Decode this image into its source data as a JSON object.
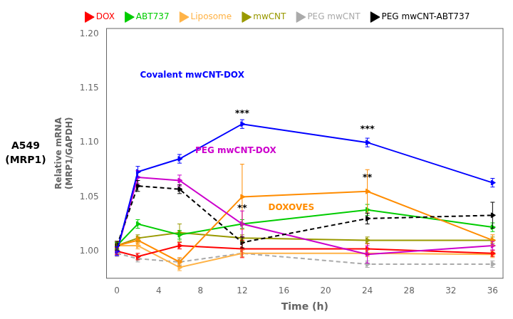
{
  "chart_data": {
    "type": "line",
    "x": [
      0,
      2,
      6,
      12,
      24,
      36
    ],
    "series": [
      {
        "name": "PEG mwCNT",
        "color": "#AAAAAA",
        "line_style": "dashed",
        "marker": "triangle-right",
        "values": [
          0.998,
          0.993,
          0.99,
          0.998,
          0.988,
          0.988
        ],
        "errors": [
          0.003,
          0.003,
          0.003,
          0.003,
          0.003,
          0.003
        ]
      },
      {
        "name": "Liposome",
        "color": "#FFB347",
        "line_style": "solid",
        "marker": "triangle-right",
        "values": [
          1.005,
          1.005,
          0.985,
          0.998,
          0.998,
          0.997
        ],
        "errors": [
          0.003,
          0.003,
          0.003,
          0.003,
          0.003,
          0.003
        ]
      },
      {
        "name": "DOX",
        "color": "#FF0000",
        "line_style": "solid",
        "marker": "triangle-right",
        "values": [
          1.0,
          0.995,
          1.005,
          1.002,
          1.002,
          0.998
        ],
        "errors": [
          0.003,
          0.003,
          0.003,
          0.008,
          0.005,
          0.003
        ]
      },
      {
        "name": "mwCNT",
        "color": "#999900",
        "line_style": "solid",
        "marker": "triangle-right",
        "values": [
          1.005,
          1.012,
          1.017,
          1.012,
          1.01,
          1.01
        ],
        "errors": [
          0.003,
          0.003,
          0.008,
          0.003,
          0.003,
          0.003
        ]
      },
      {
        "name": "ABT737",
        "color": "#00CC00",
        "line_style": "solid",
        "marker": "triangle-right",
        "values": [
          1.005,
          1.025,
          1.015,
          1.025,
          1.038,
          1.022
        ],
        "errors": [
          0.003,
          0.004,
          0.004,
          0.004,
          0.005,
          0.004
        ]
      },
      {
        "name": "DOXOVES",
        "color": "#FF8C00",
        "line_style": "solid",
        "marker": "triangle-right",
        "values": [
          1.005,
          1.01,
          0.99,
          1.05,
          1.055,
          1.01
        ],
        "errors": [
          0.004,
          0.003,
          0.004,
          0.03,
          0.02,
          0.005
        ]
      },
      {
        "name": "PEG mwCNT-DOX",
        "color": "#CC00CC",
        "line_style": "solid",
        "marker": "triangle-right",
        "values": [
          1.0,
          1.068,
          1.065,
          1.025,
          0.997,
          1.005
        ],
        "errors": [
          0.004,
          0.006,
          0.005,
          0.012,
          0.008,
          0.004
        ]
      },
      {
        "name": "PEG mwCNT-ABT737",
        "color": "#000000",
        "line_style": "dashed",
        "marker": "triangle-right",
        "values": [
          1.005,
          1.06,
          1.057,
          1.008,
          1.03,
          1.033
        ],
        "errors": [
          0.004,
          0.005,
          0.004,
          0.005,
          0.005,
          0.012
        ]
      },
      {
        "name": "Covalent mwCNT-DOX",
        "color": "#0000FF",
        "line_style": "solid",
        "marker": "triangle-right",
        "values": [
          1.0,
          1.073,
          1.085,
          1.117,
          1.1,
          1.063
        ],
        "errors": [
          0.004,
          0.005,
          0.004,
          0.004,
          0.004,
          0.004
        ]
      }
    ],
    "legend": "top",
    "legend_entries": [
      "DOX",
      "ABT737",
      "Liposome",
      "mwCNT",
      "PEG mwCNT",
      "PEG mwCNT-ABT737"
    ],
    "x_label": "Time (h)",
    "y_label": "Relative mRNA\n(MRP1/GAPDH)",
    "side_label": [
      "A549",
      "(MRP1)"
    ],
    "xlim": [
      -1,
      37
    ],
    "xticks": [
      0,
      4,
      8,
      12,
      16,
      20,
      24,
      28,
      32,
      36
    ],
    "ylim": [
      0.975,
      1.205
    ],
    "yticks": [
      {
        "value": 1.0,
        "label": "1.00"
      },
      {
        "value": 1.05,
        "label": "1.05"
      },
      {
        "value": 1.1,
        "label": "1.10"
      },
      {
        "value": 1.15,
        "label": "1.15"
      },
      {
        "value": 1.2,
        "label": "1.20"
      }
    ],
    "grid": false,
    "annotations": [
      {
        "text": "Covalent mwCNT-DOX",
        "x": 2.2,
        "y": 1.16,
        "color": "#0000FF"
      },
      {
        "text": "PEG mwCNT-DOX",
        "x": 7.5,
        "y": 1.09,
        "color": "#CC00CC"
      },
      {
        "text": "DOXOVES",
        "x": 14.5,
        "y": 1.038,
        "color": "#FF8C00"
      }
    ],
    "stat_annotations": [
      {
        "text": "***",
        "x": 12,
        "y": 1.122
      },
      {
        "text": "**",
        "x": 12,
        "y": 1.035
      },
      {
        "text": "***",
        "x": 24,
        "y": 1.108
      },
      {
        "text": "**",
        "x": 24,
        "y": 1.063
      }
    ]
  }
}
